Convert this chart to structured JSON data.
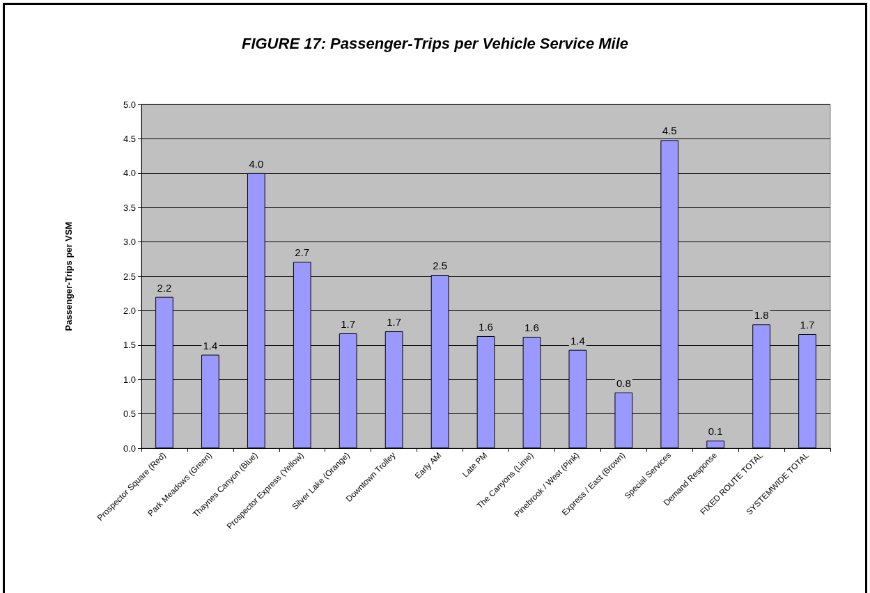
{
  "chart_data": {
    "type": "bar",
    "title": "FIGURE 17: Passenger-Trips per Vehicle Service Mile",
    "ylabel": "Passenger-Trips per VSM",
    "categories": [
      "Prospector Square (Red)",
      "Park Meadows (Green)",
      "Thaynes Canyon (Blue)",
      "Prospector Express (Yellow)",
      "Silver Lake (Orange)",
      "Downtown Trolley",
      "Early AM",
      "Late PM",
      "The Canyons (Lime)",
      "Pinebrook / West (Pink)",
      "Express / East (Brown)",
      "Special Services",
      "Demand Response",
      "FIXED ROUTE TOTAL",
      "SYSTEMWIDE TOTAL"
    ],
    "values": [
      2.2,
      1.36,
      4.0,
      2.71,
      1.67,
      1.7,
      2.52,
      1.63,
      1.62,
      1.43,
      0.81,
      4.48,
      0.11,
      1.8,
      1.66
    ],
    "value_labels": [
      "2.2",
      "1.4",
      "4.0",
      "2.7",
      "1.7",
      "1.7",
      "2.5",
      "1.6",
      "1.6",
      "1.4",
      "0.8",
      "4.5",
      "0.1",
      "1.8",
      "1.7"
    ],
    "color": "#9999ff",
    "ylim": [
      0,
      5
    ],
    "yticks": [
      {
        "value": 0,
        "label": "0.0"
      },
      0.5,
      {
        "value": 1,
        "label": "1.0"
      },
      1.5,
      {
        "value": 2,
        "label": "2.0"
      },
      2.5,
      {
        "value": 3,
        "label": "3.0"
      },
      3.5,
      {
        "value": 4,
        "label": "4.0"
      },
      4.5,
      {
        "value": 5,
        "label": "5.0"
      }
    ],
    "grid": "y"
  }
}
